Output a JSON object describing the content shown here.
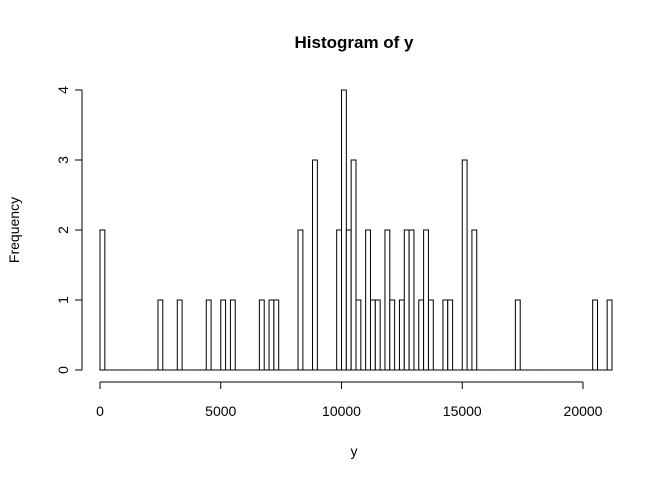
{
  "chart_data": {
    "type": "bar",
    "title": "Histogram of y",
    "xlabel": "y",
    "ylabel": "Frequency",
    "bin_width": 200,
    "xlim": [
      0,
      21200
    ],
    "ylim": [
      0,
      4
    ],
    "x_ticks": [
      0,
      5000,
      10000,
      15000,
      20000
    ],
    "x_tick_labels": [
      "0",
      "5000",
      "10000",
      "15000",
      "20000"
    ],
    "y_ticks": [
      0,
      1,
      2,
      3,
      4
    ],
    "y_tick_labels": [
      "0",
      "1",
      "2",
      "3",
      "4"
    ],
    "bins": [
      {
        "start": 0,
        "count": 2
      },
      {
        "start": 2400,
        "count": 1
      },
      {
        "start": 3200,
        "count": 1
      },
      {
        "start": 4400,
        "count": 1
      },
      {
        "start": 5000,
        "count": 1
      },
      {
        "start": 5400,
        "count": 1
      },
      {
        "start": 6600,
        "count": 1
      },
      {
        "start": 7000,
        "count": 1
      },
      {
        "start": 7200,
        "count": 1
      },
      {
        "start": 8200,
        "count": 2
      },
      {
        "start": 8800,
        "count": 3
      },
      {
        "start": 9800,
        "count": 2
      },
      {
        "start": 10000,
        "count": 4
      },
      {
        "start": 10200,
        "count": 2
      },
      {
        "start": 10400,
        "count": 3
      },
      {
        "start": 10600,
        "count": 1
      },
      {
        "start": 11000,
        "count": 2
      },
      {
        "start": 11200,
        "count": 1
      },
      {
        "start": 11400,
        "count": 1
      },
      {
        "start": 11800,
        "count": 2
      },
      {
        "start": 12000,
        "count": 1
      },
      {
        "start": 12400,
        "count": 1
      },
      {
        "start": 12600,
        "count": 2
      },
      {
        "start": 12800,
        "count": 2
      },
      {
        "start": 13200,
        "count": 1
      },
      {
        "start": 13400,
        "count": 2
      },
      {
        "start": 13600,
        "count": 1
      },
      {
        "start": 14200,
        "count": 1
      },
      {
        "start": 14400,
        "count": 1
      },
      {
        "start": 15000,
        "count": 3
      },
      {
        "start": 15400,
        "count": 2
      },
      {
        "start": 17200,
        "count": 1
      },
      {
        "start": 20400,
        "count": 1
      },
      {
        "start": 21000,
        "count": 1
      }
    ]
  }
}
